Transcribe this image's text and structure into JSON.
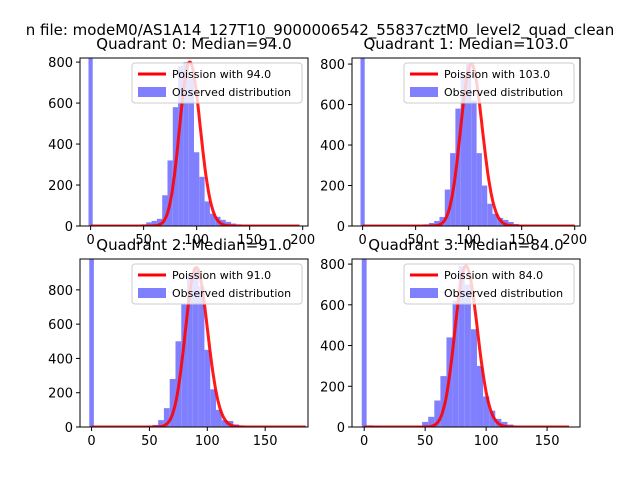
{
  "suptitle": "n file: modeM0/AS1A14_127T10_9000006542_55837cztM0_level2_quad_clean",
  "colors": {
    "poisson_line": "#ff0000",
    "observed_bars": "#8080ff",
    "spike_bar": "#8080ff",
    "axes": "#000000"
  },
  "chart_data": [
    {
      "type": "bar",
      "title": "Quadrant 0: Median=94.0",
      "xlim": [
        -10,
        205
      ],
      "ylim": [
        0,
        820
      ],
      "xticks": [
        0,
        50,
        100,
        150,
        200
      ],
      "yticks": [
        0,
        200,
        400,
        600,
        800
      ],
      "legend": {
        "position": "upper-right",
        "entries": [
          "Poission with 94.0",
          "Observed distribution"
        ]
      },
      "poisson_lambda": 94.0,
      "poisson_scale": 800,
      "poisson_x_range": [
        0,
        197
      ],
      "spike": {
        "x": 0,
        "value": 820
      },
      "bin_width": 5,
      "bins": [
        {
          "x": 45,
          "value": 3
        },
        {
          "x": 50,
          "value": 8
        },
        {
          "x": 55,
          "value": 18
        },
        {
          "x": 60,
          "value": 25
        },
        {
          "x": 65,
          "value": 35
        },
        {
          "x": 70,
          "value": 150
        },
        {
          "x": 75,
          "value": 320
        },
        {
          "x": 80,
          "value": 580
        },
        {
          "x": 85,
          "value": 780
        },
        {
          "x": 90,
          "value": 800
        },
        {
          "x": 95,
          "value": 720
        },
        {
          "x": 100,
          "value": 360
        },
        {
          "x": 105,
          "value": 240
        },
        {
          "x": 110,
          "value": 120
        },
        {
          "x": 115,
          "value": 60
        },
        {
          "x": 120,
          "value": 45
        },
        {
          "x": 125,
          "value": 30
        },
        {
          "x": 130,
          "value": 20
        },
        {
          "x": 135,
          "value": 12
        },
        {
          "x": 140,
          "value": 8
        },
        {
          "x": 145,
          "value": 4
        }
      ]
    },
    {
      "type": "bar",
      "title": "Quadrant 1: Median=103.0",
      "xlim": [
        -10,
        205
      ],
      "ylim": [
        0,
        830
      ],
      "xticks": [
        0,
        50,
        100,
        150,
        200
      ],
      "yticks": [
        0,
        200,
        400,
        600,
        800
      ],
      "legend": {
        "position": "upper-right",
        "entries": [
          "Poission with 103.0",
          "Observed distribution"
        ]
      },
      "poisson_lambda": 103.0,
      "poisson_scale": 800,
      "poisson_x_range": [
        0,
        200
      ],
      "spike": {
        "x": 0,
        "value": 830
      },
      "bin_width": 5,
      "bins": [
        {
          "x": 55,
          "value": 3
        },
        {
          "x": 60,
          "value": 8
        },
        {
          "x": 65,
          "value": 15
        },
        {
          "x": 70,
          "value": 25
        },
        {
          "x": 75,
          "value": 45
        },
        {
          "x": 80,
          "value": 180
        },
        {
          "x": 85,
          "value": 360
        },
        {
          "x": 90,
          "value": 580
        },
        {
          "x": 95,
          "value": 740
        },
        {
          "x": 100,
          "value": 800
        },
        {
          "x": 105,
          "value": 620
        },
        {
          "x": 110,
          "value": 360
        },
        {
          "x": 115,
          "value": 200
        },
        {
          "x": 120,
          "value": 110
        },
        {
          "x": 125,
          "value": 60
        },
        {
          "x": 130,
          "value": 40
        },
        {
          "x": 135,
          "value": 30
        },
        {
          "x": 140,
          "value": 20
        },
        {
          "x": 145,
          "value": 10
        },
        {
          "x": 150,
          "value": 5
        }
      ]
    },
    {
      "type": "bar",
      "title": "Quadrant 2: Median=91.0",
      "xlim": [
        -10,
        187
      ],
      "ylim": [
        0,
        980
      ],
      "xticks": [
        0,
        50,
        100,
        150
      ],
      "yticks": [
        0,
        200,
        400,
        600,
        800
      ],
      "legend": {
        "position": "upper-right",
        "entries": [
          "Poission with 91.0",
          "Observed distribution"
        ]
      },
      "poisson_lambda": 91.0,
      "poisson_scale": 930,
      "poisson_x_range": [
        0,
        185
      ],
      "spike": {
        "x": 0,
        "value": 980
      },
      "bin_width": 5,
      "bins": [
        {
          "x": 50,
          "value": 5
        },
        {
          "x": 55,
          "value": 12
        },
        {
          "x": 60,
          "value": 40
        },
        {
          "x": 65,
          "value": 110
        },
        {
          "x": 70,
          "value": 280
        },
        {
          "x": 75,
          "value": 500
        },
        {
          "x": 80,
          "value": 720
        },
        {
          "x": 85,
          "value": 880
        },
        {
          "x": 90,
          "value": 930
        },
        {
          "x": 95,
          "value": 820
        },
        {
          "x": 100,
          "value": 450
        },
        {
          "x": 105,
          "value": 220
        },
        {
          "x": 110,
          "value": 100
        },
        {
          "x": 115,
          "value": 40
        },
        {
          "x": 120,
          "value": 35
        },
        {
          "x": 125,
          "value": 15
        },
        {
          "x": 130,
          "value": 8
        },
        {
          "x": 135,
          "value": 4
        }
      ]
    },
    {
      "type": "bar",
      "title": "Quadrant 3: Median=84.0",
      "xlim": [
        -10,
        177
      ],
      "ylim": [
        0,
        825
      ],
      "xticks": [
        0,
        50,
        100,
        150
      ],
      "yticks": [
        0,
        200,
        400,
        600,
        800
      ],
      "legend": {
        "position": "upper-right",
        "entries": [
          "Poission with 84.0",
          "Observed distribution"
        ]
      },
      "poisson_lambda": 84.0,
      "poisson_scale": 790,
      "poisson_x_range": [
        0,
        168
      ],
      "spike": {
        "x": 0,
        "value": 825
      },
      "bin_width": 5,
      "bins": [
        {
          "x": 5,
          "value": 8
        },
        {
          "x": 10,
          "value": 5
        },
        {
          "x": 45,
          "value": 5
        },
        {
          "x": 50,
          "value": 25
        },
        {
          "x": 55,
          "value": 50
        },
        {
          "x": 60,
          "value": 130
        },
        {
          "x": 65,
          "value": 250
        },
        {
          "x": 70,
          "value": 440
        },
        {
          "x": 75,
          "value": 620
        },
        {
          "x": 80,
          "value": 790
        },
        {
          "x": 85,
          "value": 700
        },
        {
          "x": 90,
          "value": 480
        },
        {
          "x": 95,
          "value": 300
        },
        {
          "x": 100,
          "value": 150
        },
        {
          "x": 105,
          "value": 80
        },
        {
          "x": 110,
          "value": 40
        },
        {
          "x": 115,
          "value": 25
        },
        {
          "x": 120,
          "value": 12
        },
        {
          "x": 125,
          "value": 6
        }
      ]
    }
  ]
}
